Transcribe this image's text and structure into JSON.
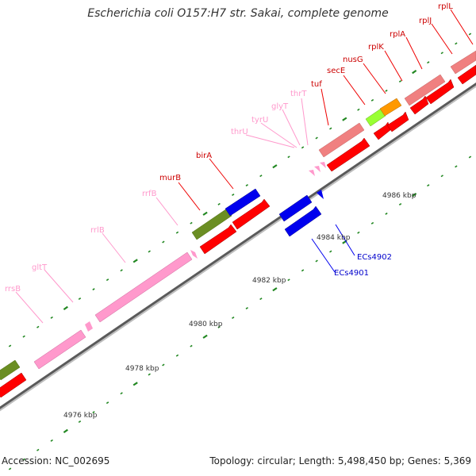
{
  "title": "Escherichia coli O157:H7 str. Sakai, complete genome",
  "footer": {
    "accession": "Accession: NC_002695",
    "summary": "Topology: circular; Length: 5,498,450 bp; Genes: 5,369"
  },
  "colors": {
    "protein_gene": "#ff0000",
    "protein_gene_light": "#f08080",
    "rna_gene": "#ff99cc",
    "other_gene": "#0000ee",
    "leader_cds": "#6b8e23",
    "highlight_green": "#99ff33",
    "highlight_orange": "#ff9900",
    "backbone": "#999999",
    "tick": "#228822"
  },
  "gene_labels": {
    "rrsB": "rrsB",
    "gltT": "gltT",
    "rrlB": "rrlB",
    "rrfB": "rrfB",
    "murB": "murB",
    "birA": "birA",
    "thrU": "thrU",
    "tyrU": "tyrU",
    "glyT": "glyT",
    "thrT": "thrT",
    "tuf": "tuf",
    "secE": "secE",
    "nusG": "nusG",
    "rplK": "rplK",
    "rplA": "rplA",
    "rplJ": "rplJ",
    "rplL": "rplL",
    "ECs4901": "ECs4901",
    "ECs4902": "ECs4902"
  },
  "kbp_labels": {
    "k4976": "4976 kbp",
    "k4978": "4978 kbp",
    "k4980": "4980 kbp",
    "k4982": "4982 kbp",
    "k4984": "4984 kbp",
    "k4986": "4986 kbp"
  }
}
